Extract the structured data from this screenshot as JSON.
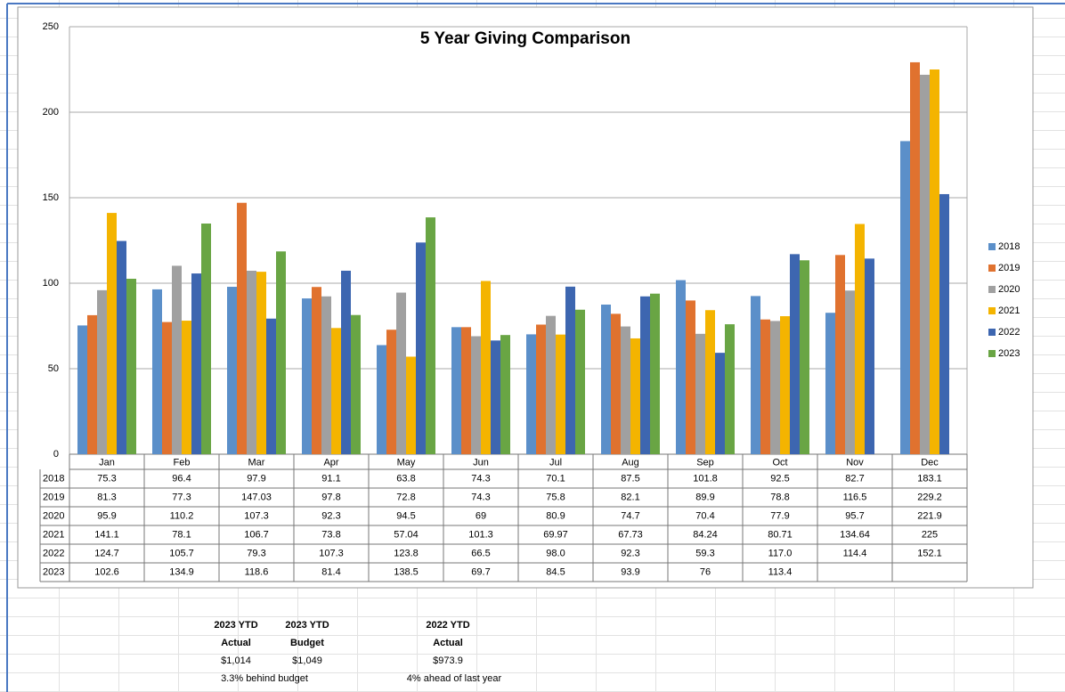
{
  "chart_data": {
    "type": "bar",
    "title": "5 Year Giving Comparison",
    "categories": [
      "Jan",
      "Feb",
      "Mar",
      "Apr",
      "May",
      "Jun",
      "Jul",
      "Aug",
      "Sep",
      "Oct",
      "Nov",
      "Dec"
    ],
    "series": [
      {
        "name": "2018",
        "color": "#5b8fc9",
        "values": [
          75.3,
          96.4,
          97.9,
          91.1,
          63.8,
          74.3,
          70.1,
          87.5,
          101.8,
          92.5,
          82.7,
          183.1
        ]
      },
      {
        "name": "2019",
        "color": "#e0722f",
        "values": [
          81.3,
          77.3,
          147.03,
          97.8,
          72.8,
          74.3,
          75.8,
          82.1,
          89.9,
          78.8,
          116.5,
          229.2
        ]
      },
      {
        "name": "2020",
        "color": "#a0a0a0",
        "values": [
          95.9,
          110.2,
          107.3,
          92.3,
          94.5,
          69,
          80.9,
          74.7,
          70.4,
          77.9,
          95.7,
          221.9
        ]
      },
      {
        "name": "2021",
        "color": "#f4b400",
        "values": [
          141.1,
          78.1,
          106.7,
          73.8,
          57.04,
          101.3,
          69.97,
          67.73,
          84.24,
          80.71,
          134.64,
          225
        ]
      },
      {
        "name": "2022",
        "color": "#3d66b0",
        "values": [
          124.7,
          105.7,
          79.3,
          107.3,
          123.8,
          66.5,
          98,
          92.3,
          59.3,
          117,
          114.4,
          152.1
        ],
        "value_labels": [
          "124.7",
          "105.7",
          "79.3",
          "107.3",
          "123.8",
          "66.5",
          "98.0",
          "92.3",
          "59.3",
          "117.0",
          "114.4",
          "152.1"
        ]
      },
      {
        "name": "2023",
        "color": "#69a544",
        "values": [
          102.6,
          134.9,
          118.6,
          81.4,
          138.5,
          69.7,
          84.5,
          93.9,
          76,
          113.4,
          null,
          null
        ]
      }
    ],
    "ylim": [
      0,
      250
    ],
    "yticks": [
      0,
      50,
      100,
      150,
      200,
      250
    ],
    "grid": true,
    "legend": "right"
  },
  "summary": {
    "columns": [
      {
        "heading": [
          "2023 YTD",
          "Actual"
        ],
        "value": "$1,014"
      },
      {
        "heading": [
          "2023 YTD",
          "Budget"
        ],
        "value": "$1,049"
      },
      {
        "heading": [
          "2022 YTD",
          "Actual"
        ],
        "value": "$973.9"
      }
    ],
    "notes": [
      "3.3% behind budget",
      "4% ahead of last year"
    ]
  }
}
